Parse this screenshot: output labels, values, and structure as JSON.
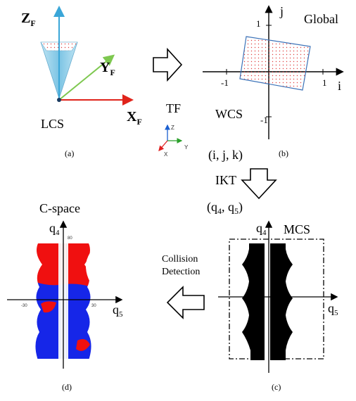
{
  "colors": {
    "z_axis": "#3aa6d8",
    "y_axis": "#7ec850",
    "x_axis": "#e0241b",
    "cone": "#9cd3ea",
    "region_outline": "#3b72b8",
    "region_dots": "#e04040",
    "cspace_red": "#f01010",
    "cspace_blue": "#1626e8",
    "mcs_black": "#000000"
  },
  "lcs": {
    "z_label": "Z",
    "z_sub": "F",
    "y_label": "Y",
    "y_sub": "F",
    "x_label": "X",
    "x_sub": "F",
    "name": "LCS",
    "caption": "(a)"
  },
  "global": {
    "title": "Global",
    "i_label": "i",
    "j_label": "j",
    "tick_pos_x": "1",
    "tick_neg_x": "-1",
    "tick_pos_y": "1",
    "tick_neg_y": "-1",
    "wcs_label": "WCS",
    "caption": "(b)"
  },
  "tf": {
    "label": "TF",
    "z": "Z",
    "y": "Y",
    "x": "X"
  },
  "ikt": {
    "input": "(i, j, k)",
    "label": "IKT",
    "output_prefix": "(q",
    "output_sub1": "4",
    "output_mid": ", q",
    "output_sub2": "5",
    "output_suffix": ")"
  },
  "mcs": {
    "title": "MCS",
    "q4": "q",
    "q4_sub": "4",
    "q5": "q",
    "q5_sub": "5",
    "caption": "(c)"
  },
  "collision": {
    "line1": "Collision",
    "line2": "Detection"
  },
  "cspace": {
    "title": "C-space",
    "q4": "q",
    "q4_sub": "4",
    "q5": "q",
    "q5_sub": "5",
    "tick_top": "80",
    "tick_left": "-30",
    "tick_right": "30",
    "caption": "(d)"
  }
}
